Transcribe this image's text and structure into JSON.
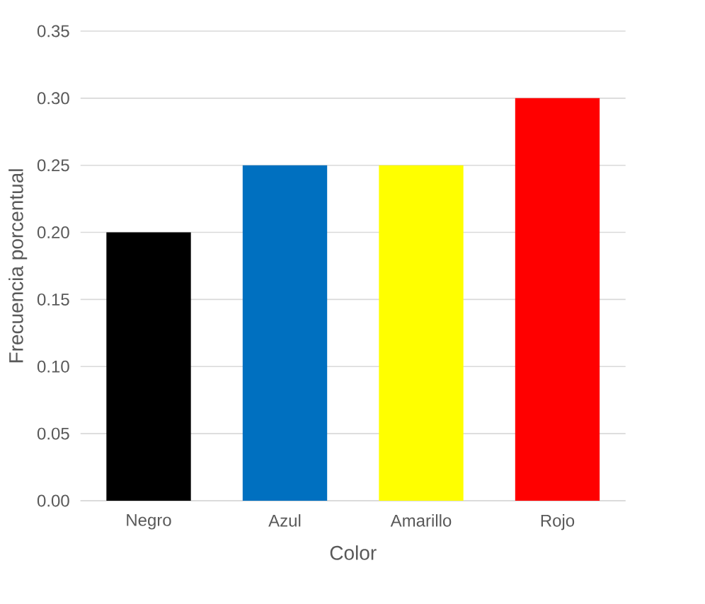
{
  "chart_data": {
    "type": "bar",
    "xlabel": "Color",
    "ylabel": "Frecuencia porcentual",
    "categories": [
      "Negro",
      "Azul",
      "Amarillo",
      "Rojo"
    ],
    "values": [
      0.2,
      0.25,
      0.25,
      0.3
    ],
    "colors": [
      "#000000",
      "#0070c0",
      "#ffff00",
      "#ff0000"
    ],
    "ylim": [
      0,
      0.35
    ],
    "yticks": [
      {
        "value": 0,
        "label": "0.00"
      },
      {
        "value": 0.05,
        "label": "0.05"
      },
      {
        "value": 0.1,
        "label": "0.10"
      },
      {
        "value": 0.15,
        "label": "0.15"
      },
      {
        "value": 0.2,
        "label": "0.20"
      },
      {
        "value": 0.25,
        "label": "0.25"
      },
      {
        "value": 0.3,
        "label": "0.30"
      },
      {
        "value": 0.35,
        "label": "0.35"
      }
    ],
    "grid": "y"
  }
}
